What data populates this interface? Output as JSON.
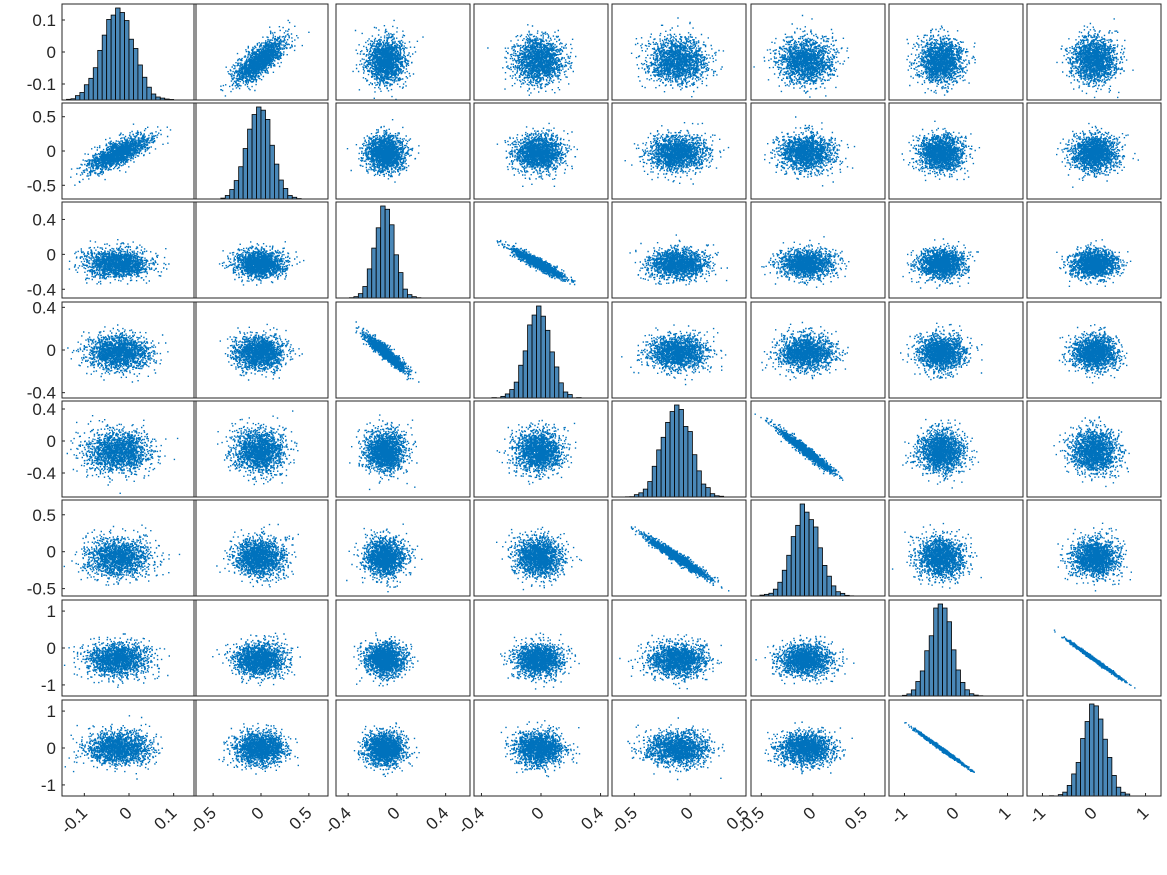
{
  "chart_data": {
    "type": "scatter-matrix",
    "n_variables": 8,
    "title": "",
    "xlabel": "",
    "ylabel": "",
    "grid": false,
    "marker_color": "#0072BD",
    "hist_face_color": "#4A88B8",
    "hist_edge_color": "#000000",
    "variables": [
      {
        "std": 0.035,
        "mean": -0.025,
        "range": [
          -0.15,
          0.15
        ],
        "x_ticks": [
          "-0.1",
          "0",
          "0.1"
        ],
        "x_tick_values": [
          -0.1,
          0,
          0.1
        ],
        "y_ticks": [
          "0.1",
          "0",
          "-0.1"
        ],
        "y_tick_values": [
          0.1,
          0,
          -0.1
        ]
      },
      {
        "std": 0.13,
        "mean": -0.02,
        "range": [
          -0.7,
          0.7
        ],
        "x_ticks": [
          "-0.5",
          "0",
          "0.5"
        ],
        "x_tick_values": [
          -0.5,
          0,
          0.5
        ],
        "y_ticks": [
          "0.5",
          "0",
          "-0.5"
        ],
        "y_tick_values": [
          0.5,
          0,
          -0.5
        ]
      },
      {
        "std": 0.08,
        "mean": -0.1,
        "range": [
          -0.5,
          0.6
        ],
        "x_ticks": [
          "-0.4",
          "0",
          "0.4"
        ],
        "x_tick_values": [
          -0.4,
          0,
          0.4
        ],
        "y_ticks": [
          "0.4",
          "0",
          "-0.4"
        ],
        "y_tick_values": [
          0.4,
          0,
          -0.4
        ]
      },
      {
        "std": 0.08,
        "mean": -0.02,
        "range": [
          -0.45,
          0.45
        ],
        "x_ticks": [
          "-0.4",
          "0",
          "0.4"
        ],
        "x_tick_values": [
          -0.4,
          0,
          0.4
        ],
        "y_ticks": [
          "0.4",
          "0",
          "-0.4"
        ],
        "y_tick_values": [
          0.4,
          0,
          -0.4
        ]
      },
      {
        "std": 0.13,
        "mean": -0.12,
        "range": [
          -0.7,
          0.5
        ],
        "x_ticks": [
          "-0.5",
          "0",
          "0.5"
        ],
        "x_tick_values": [
          -0.5,
          0,
          0.5
        ],
        "y_ticks": [
          "0.4",
          "0",
          "-0.4"
        ],
        "y_tick_values": [
          0.4,
          0,
          -0.4
        ]
      },
      {
        "std": 0.13,
        "mean": -0.07,
        "range": [
          -0.6,
          0.7
        ],
        "x_ticks": [
          "-0.5",
          "0",
          "0.5"
        ],
        "x_tick_values": [
          -0.5,
          0,
          0.5
        ],
        "y_ticks": [
          "0.5",
          "0",
          "-0.5"
        ],
        "y_tick_values": [
          0.5,
          0,
          -0.5
        ]
      },
      {
        "std": 0.22,
        "mean": -0.3,
        "range": [
          -1.3,
          1.3
        ],
        "x_ticks": [
          "-1",
          "0",
          "1"
        ],
        "x_tick_values": [
          -1,
          0,
          1
        ],
        "y_ticks": [
          "1",
          "0",
          "-1"
        ],
        "y_tick_values": [
          1,
          0,
          -1
        ]
      },
      {
        "std": 0.22,
        "mean": 0.0,
        "range": [
          -1.3,
          1.3
        ],
        "x_ticks": [
          "-1",
          "0",
          "1"
        ],
        "x_tick_values": [
          -1,
          0,
          1
        ],
        "y_ticks": [
          "1",
          "0",
          "-1"
        ],
        "y_tick_values": [
          1,
          0,
          -1
        ]
      }
    ],
    "correlations": [
      {
        "i": 0,
        "j": 1,
        "r": 0.75
      },
      {
        "i": 2,
        "j": 3,
        "r": -0.93
      },
      {
        "i": 4,
        "j": 5,
        "r": -0.97
      },
      {
        "i": 6,
        "j": 7,
        "r": -0.995
      }
    ],
    "points_per_panel": 1800,
    "histogram_bins": 30
  }
}
